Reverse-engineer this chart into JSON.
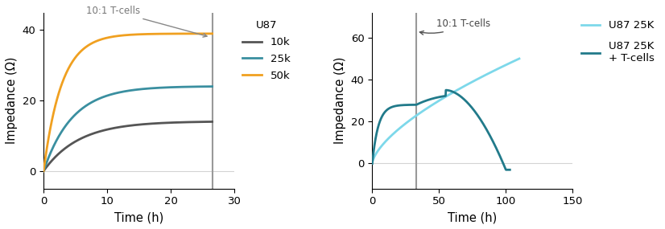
{
  "panel1": {
    "vline_x": 26.5,
    "xlim": [
      0,
      30
    ],
    "ylim": [
      -5,
      45
    ],
    "xticks": [
      0,
      10,
      20,
      30
    ],
    "yticks": [
      0,
      20,
      40
    ],
    "xlabel": "Time (h)",
    "ylabel": "Impedance (Ω)",
    "annotation_text": "10:1 T-cells",
    "legend_title": "U87",
    "line_color_10k": "#555555",
    "line_color_25k": "#3a8fa0",
    "line_color_50k": "#f0a020",
    "hline_color": "lightgray"
  },
  "panel2": {
    "vline_x": 33,
    "xlim": [
      0,
      150
    ],
    "ylim": [
      -12,
      72
    ],
    "xticks": [
      0,
      50,
      100,
      150
    ],
    "yticks": [
      0,
      20,
      40,
      60
    ],
    "xlabel": "Time (h)",
    "ylabel": "Impedance (Ω)",
    "annotation_text": "10:1 T-cells",
    "color_no_tcell": "#7dd8ea",
    "color_with_tcell": "#217a8a",
    "hline_color": "lightgray"
  }
}
